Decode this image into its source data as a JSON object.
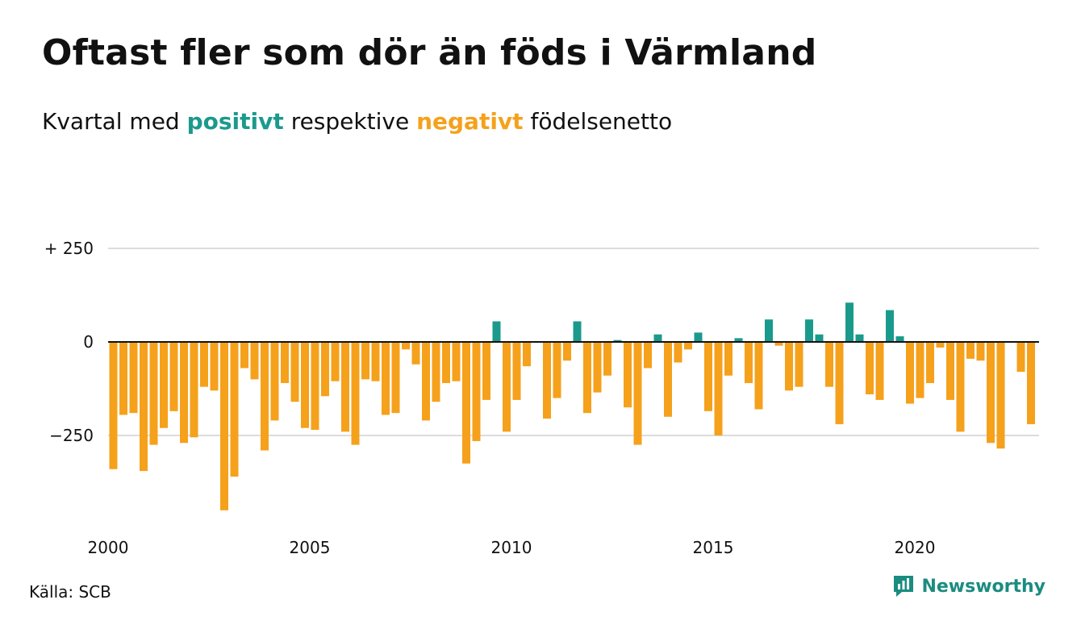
{
  "title": "Oftast fler som dör än föds i Värmland",
  "subtitle": {
    "prefix": "Kvartal med",
    "positive": "positivt",
    "middle": "respektive",
    "negative": "negativt",
    "suffix": "födelsenetto"
  },
  "colors": {
    "positive": "#1a9a8c",
    "negative": "#f5a11c",
    "grid": "#dcdcdc",
    "zero_line": "#111111",
    "brand": "#1a8c80"
  },
  "source": "Källa: SCB",
  "brand": {
    "name": "Newsworthy",
    "icon": "newsworthy-logo-icon"
  },
  "chart_data": {
    "type": "bar",
    "x_start": 2000,
    "x_step": 0.25,
    "y_ticks": [
      250,
      0,
      -250
    ],
    "y_tick_labels": [
      "+ 250",
      "0",
      "−250"
    ],
    "x_ticks": [
      2000,
      2005,
      2010,
      2015,
      2020
    ],
    "x_tick_labels": [
      "2000",
      "2005",
      "2010",
      "2015",
      "2020"
    ],
    "ylim": [
      -460,
      250
    ],
    "grid": true,
    "values": [
      -340,
      -195,
      -190,
      -345,
      -275,
      -230,
      -185,
      -270,
      -255,
      -120,
      -130,
      -450,
      -360,
      -70,
      -100,
      -290,
      -210,
      -110,
      -160,
      -230,
      -235,
      -145,
      -105,
      -240,
      -275,
      -100,
      -105,
      -195,
      -190,
      -20,
      -60,
      -210,
      -160,
      -110,
      -105,
      -325,
      -265,
      -155,
      55,
      -240,
      -155,
      -65,
      0,
      -205,
      -150,
      -50,
      55,
      -190,
      -135,
      -90,
      5,
      -175,
      -275,
      -70,
      20,
      -200,
      -55,
      -20,
      25,
      -185,
      -250,
      -90,
      10,
      -110,
      -180,
      60,
      -10,
      -130,
      -120,
      60,
      20,
      -120,
      -220,
      105,
      20,
      -140,
      -155,
      85,
      15,
      -165,
      -150,
      -110,
      -15,
      -155,
      -240,
      -45,
      -50,
      -270,
      -285,
      0,
      -80,
      -220
    ]
  }
}
